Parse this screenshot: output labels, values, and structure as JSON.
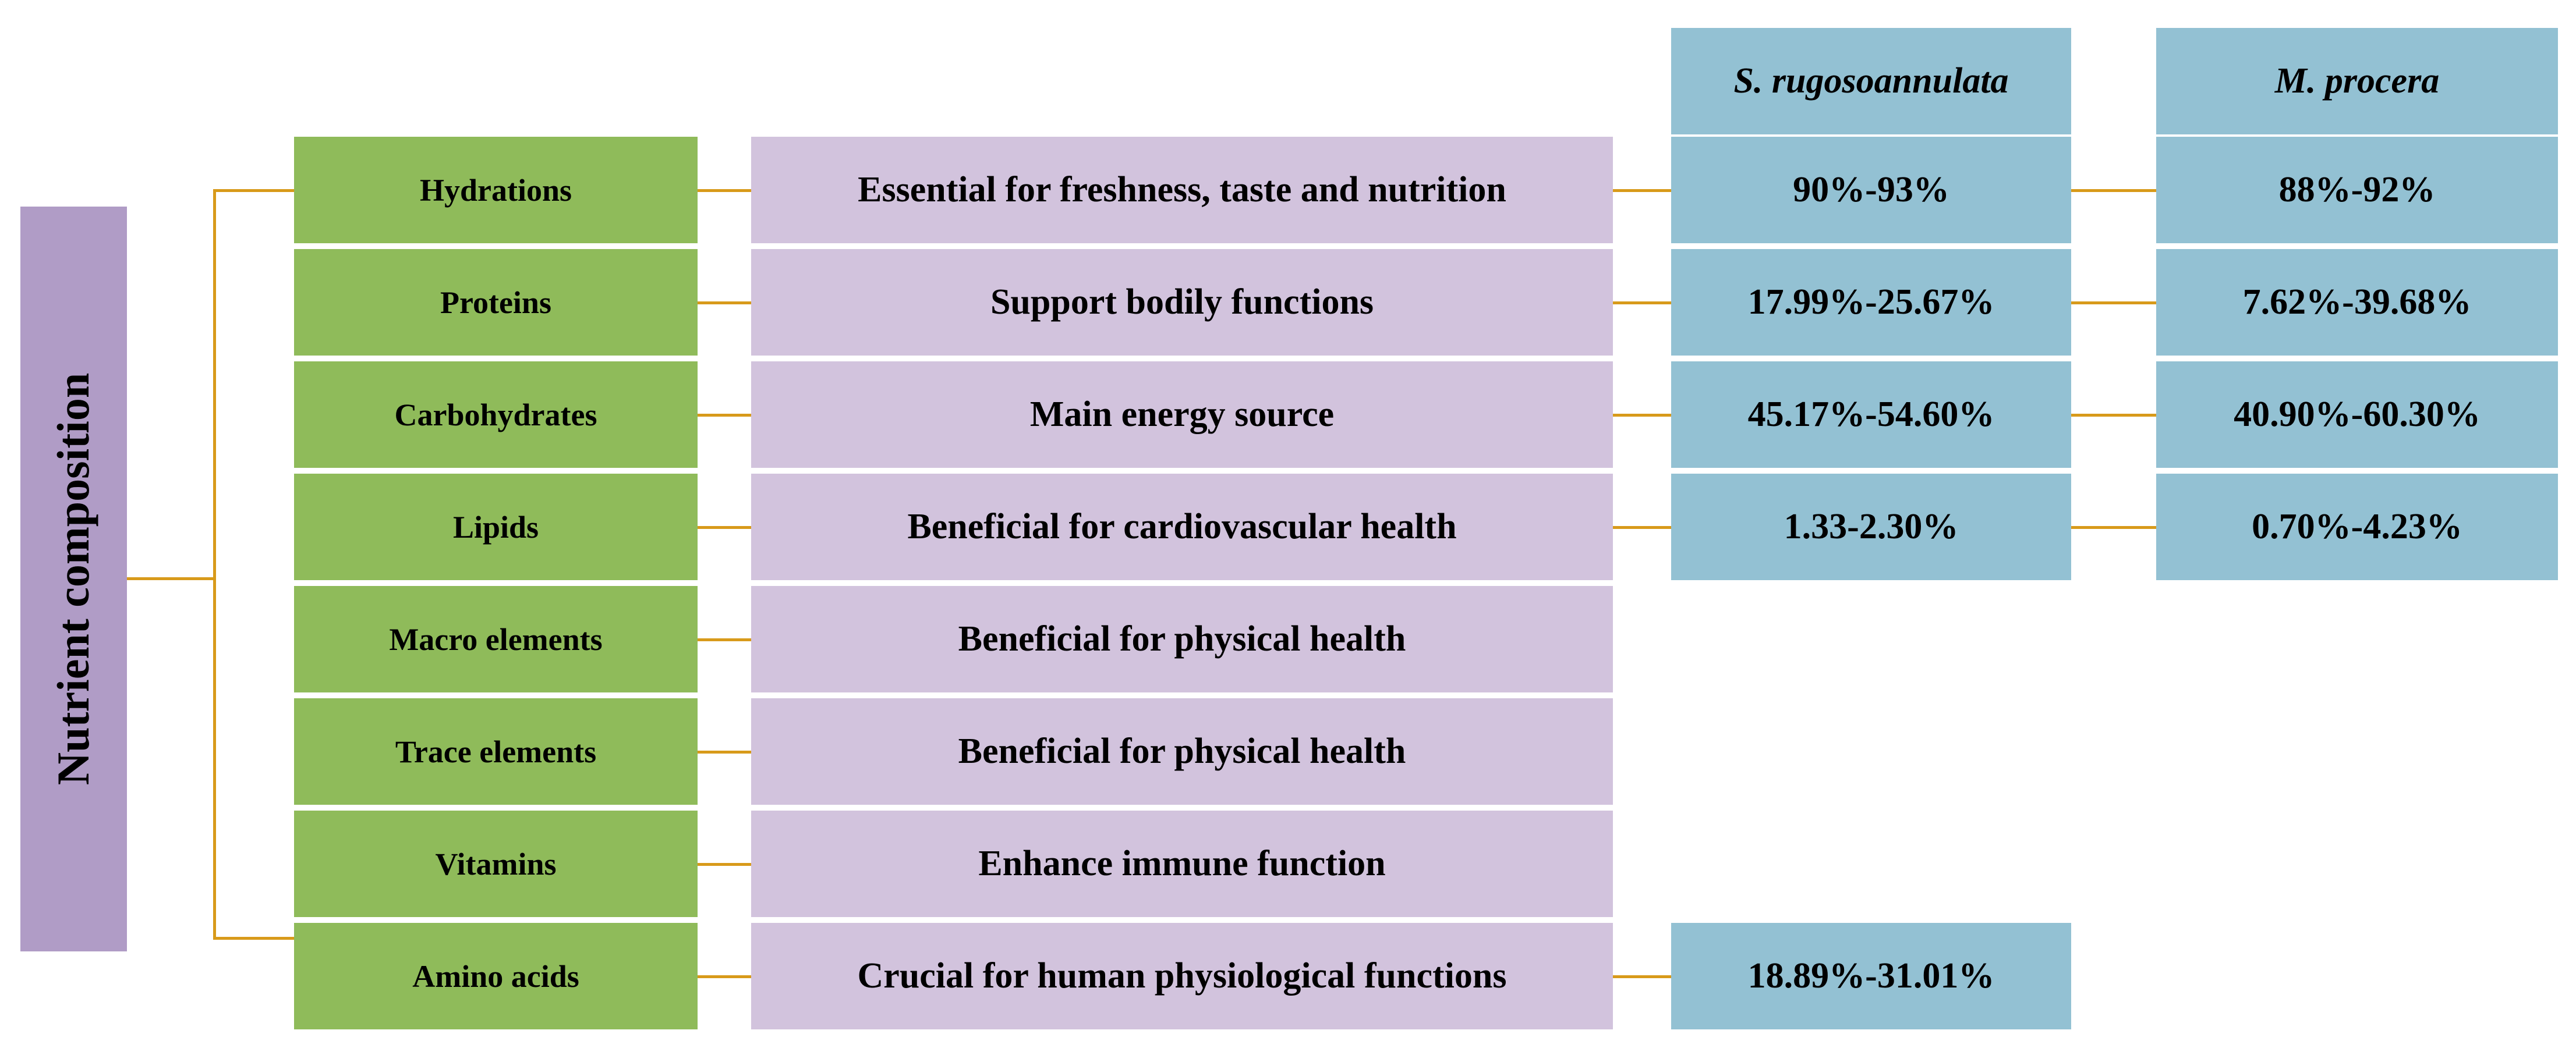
{
  "root": {
    "label": "Nutrient composition"
  },
  "species_headers": [
    "S. rugosoannulata",
    "M. procera"
  ],
  "rows": [
    {
      "nutrient": "Hydrations",
      "function": "Essential for freshness, taste and nutrition",
      "s_rugosoannulata": "90%-93%",
      "m_procera": "88%-92%"
    },
    {
      "nutrient": "Proteins",
      "function": "Support bodily functions",
      "s_rugosoannulata": "17.99%-25.67%",
      "m_procera": "7.62%-39.68%"
    },
    {
      "nutrient": "Carbohydrates",
      "function": "Main energy source",
      "s_rugosoannulata": "45.17%-54.60%",
      "m_procera": "40.90%-60.30%"
    },
    {
      "nutrient": "Lipids",
      "function": "Beneficial for cardiovascular health",
      "s_rugosoannulata": "1.33-2.30%",
      "m_procera": "0.70%-4.23%"
    },
    {
      "nutrient": "Macro elements",
      "function": "Beneficial for physical health",
      "s_rugosoannulata": "",
      "m_procera": ""
    },
    {
      "nutrient": "Trace elements",
      "function": "Beneficial for physical health",
      "s_rugosoannulata": "",
      "m_procera": ""
    },
    {
      "nutrient": "Vitamins",
      "function": "Enhance immune function",
      "s_rugosoannulata": "",
      "m_procera": ""
    },
    {
      "nutrient": "Amino acids",
      "function": "Crucial for human physiological functions",
      "s_rugosoannulata": "18.89%-31.01%",
      "m_procera": ""
    }
  ],
  "colors": {
    "root": "#b09cc6",
    "nutrient": "#8fbb5a",
    "function": "#d2c3dd",
    "value": "#93c1d3",
    "connector": "#d89a1a"
  }
}
